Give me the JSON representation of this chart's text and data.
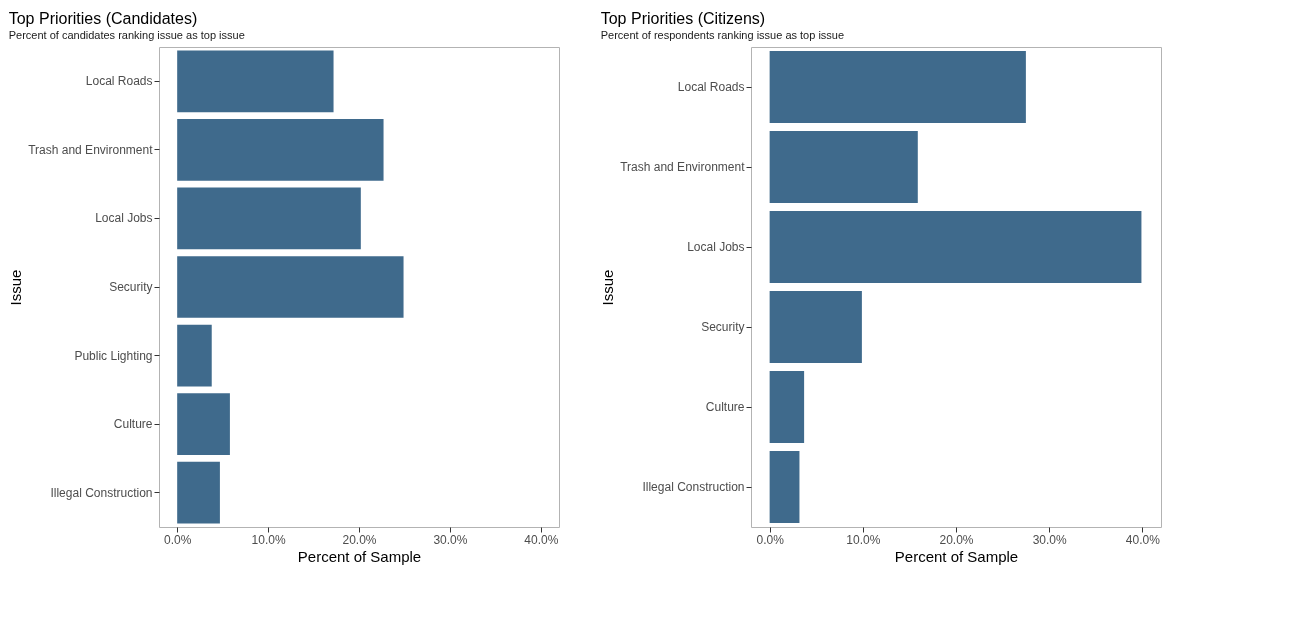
{
  "chart_data": [
    {
      "type": "bar",
      "orientation": "horizontal",
      "title": "Top Priorities (Candidates)",
      "subtitle": "Percent of candidates ranking issue as top issue",
      "xlabel": "Percent of Sample",
      "ylabel": "Issue",
      "categories": [
        "Local Roads",
        "Trash and Environment",
        "Local Jobs",
        "Security",
        "Public Lighting",
        "Culture",
        "Illegal Construction"
      ],
      "values": [
        17.2,
        22.7,
        20.2,
        24.9,
        3.8,
        5.8,
        4.7
      ],
      "color": "#3f6a8c",
      "xlim": [
        -2,
        42
      ],
      "xticks": [
        {
          "value": 0,
          "label": "0.0%"
        },
        {
          "value": 10,
          "label": "10.0%"
        },
        {
          "value": 20,
          "label": "20.0%"
        },
        {
          "value": 30,
          "label": "30.0%"
        },
        {
          "value": 40,
          "label": "40.0%"
        }
      ],
      "grid": false
    },
    {
      "type": "bar",
      "orientation": "horizontal",
      "title": "Top Priorities (Citizens)",
      "subtitle": "Percent of respondents ranking issue as top issue",
      "xlabel": "Percent of Sample",
      "ylabel": "Issue",
      "categories": [
        "Local Roads",
        "Trash and Environment",
        "Local Jobs",
        "Security",
        "Culture",
        "Illegal Construction"
      ],
      "values": [
        27.5,
        15.9,
        39.9,
        9.9,
        3.7,
        3.2
      ],
      "color": "#3f6a8c",
      "xlim": [
        -2,
        42
      ],
      "xticks": [
        {
          "value": 0,
          "label": "0.0%"
        },
        {
          "value": 10,
          "label": "10.0%"
        },
        {
          "value": 20,
          "label": "20.0%"
        },
        {
          "value": 30,
          "label": "30.0%"
        },
        {
          "value": 40,
          "label": "40.0%"
        }
      ],
      "grid": false
    }
  ]
}
